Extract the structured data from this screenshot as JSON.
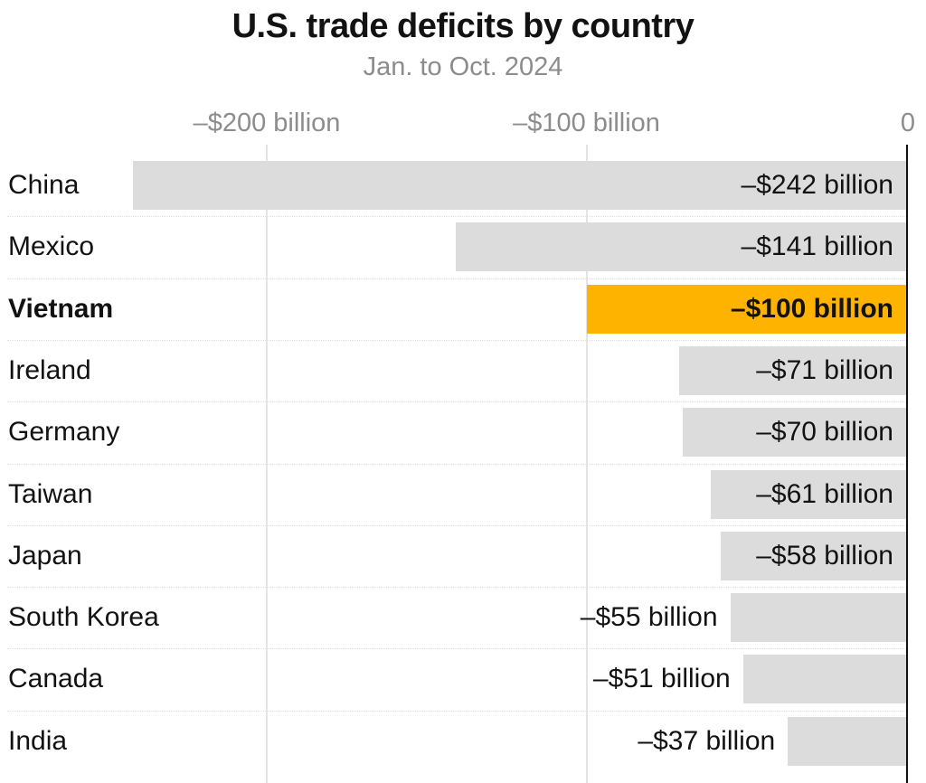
{
  "chart_data": {
    "type": "bar",
    "orientation": "horizontal",
    "title": "U.S. trade deficits by country",
    "subtitle": "Jan. to Oct. 2024",
    "xlim": [
      -242,
      0
    ],
    "ticks": [
      {
        "value": -200,
        "label": "–$200 billion"
      },
      {
        "value": -100,
        "label": "–$100 billion"
      },
      {
        "value": 0,
        "label": "0"
      }
    ],
    "highlight_color": "#fdb300",
    "bar_color": "#dcdcdc",
    "rows": [
      {
        "country": "China",
        "value": -242,
        "label": "–$242 billion",
        "highlight": false
      },
      {
        "country": "Mexico",
        "value": -141,
        "label": "–$141 billion",
        "highlight": false
      },
      {
        "country": "Vietnam",
        "value": -100,
        "label": "–$100 billion",
        "highlight": true
      },
      {
        "country": "Ireland",
        "value": -71,
        "label": "–$71 billion",
        "highlight": false
      },
      {
        "country": "Germany",
        "value": -70,
        "label": "–$70 billion",
        "highlight": false
      },
      {
        "country": "Taiwan",
        "value": -61,
        "label": "–$61 billion",
        "highlight": false
      },
      {
        "country": "Japan",
        "value": -58,
        "label": "–$58 billion",
        "highlight": false
      },
      {
        "country": "South Korea",
        "value": -55,
        "label": "–$55 billion",
        "highlight": false
      },
      {
        "country": "Canada",
        "value": -51,
        "label": "–$51 billion",
        "highlight": false
      },
      {
        "country": "India",
        "value": -37,
        "label": "–$37 billion",
        "highlight": false
      }
    ]
  }
}
